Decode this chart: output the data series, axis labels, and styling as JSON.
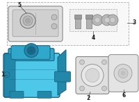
{
  "bg_color": "#ffffff",
  "line_color": "#555555",
  "part_color": "#4ec8e8",
  "part_mid": "#30a8cc",
  "part_dark": "#2288aa",
  "part_outline": "#1a6080",
  "gasket_color": "#e0e0e0",
  "box_color": "#f8f8f8",
  "label_fontsize": 5.5,
  "hw_box_dash": "--"
}
